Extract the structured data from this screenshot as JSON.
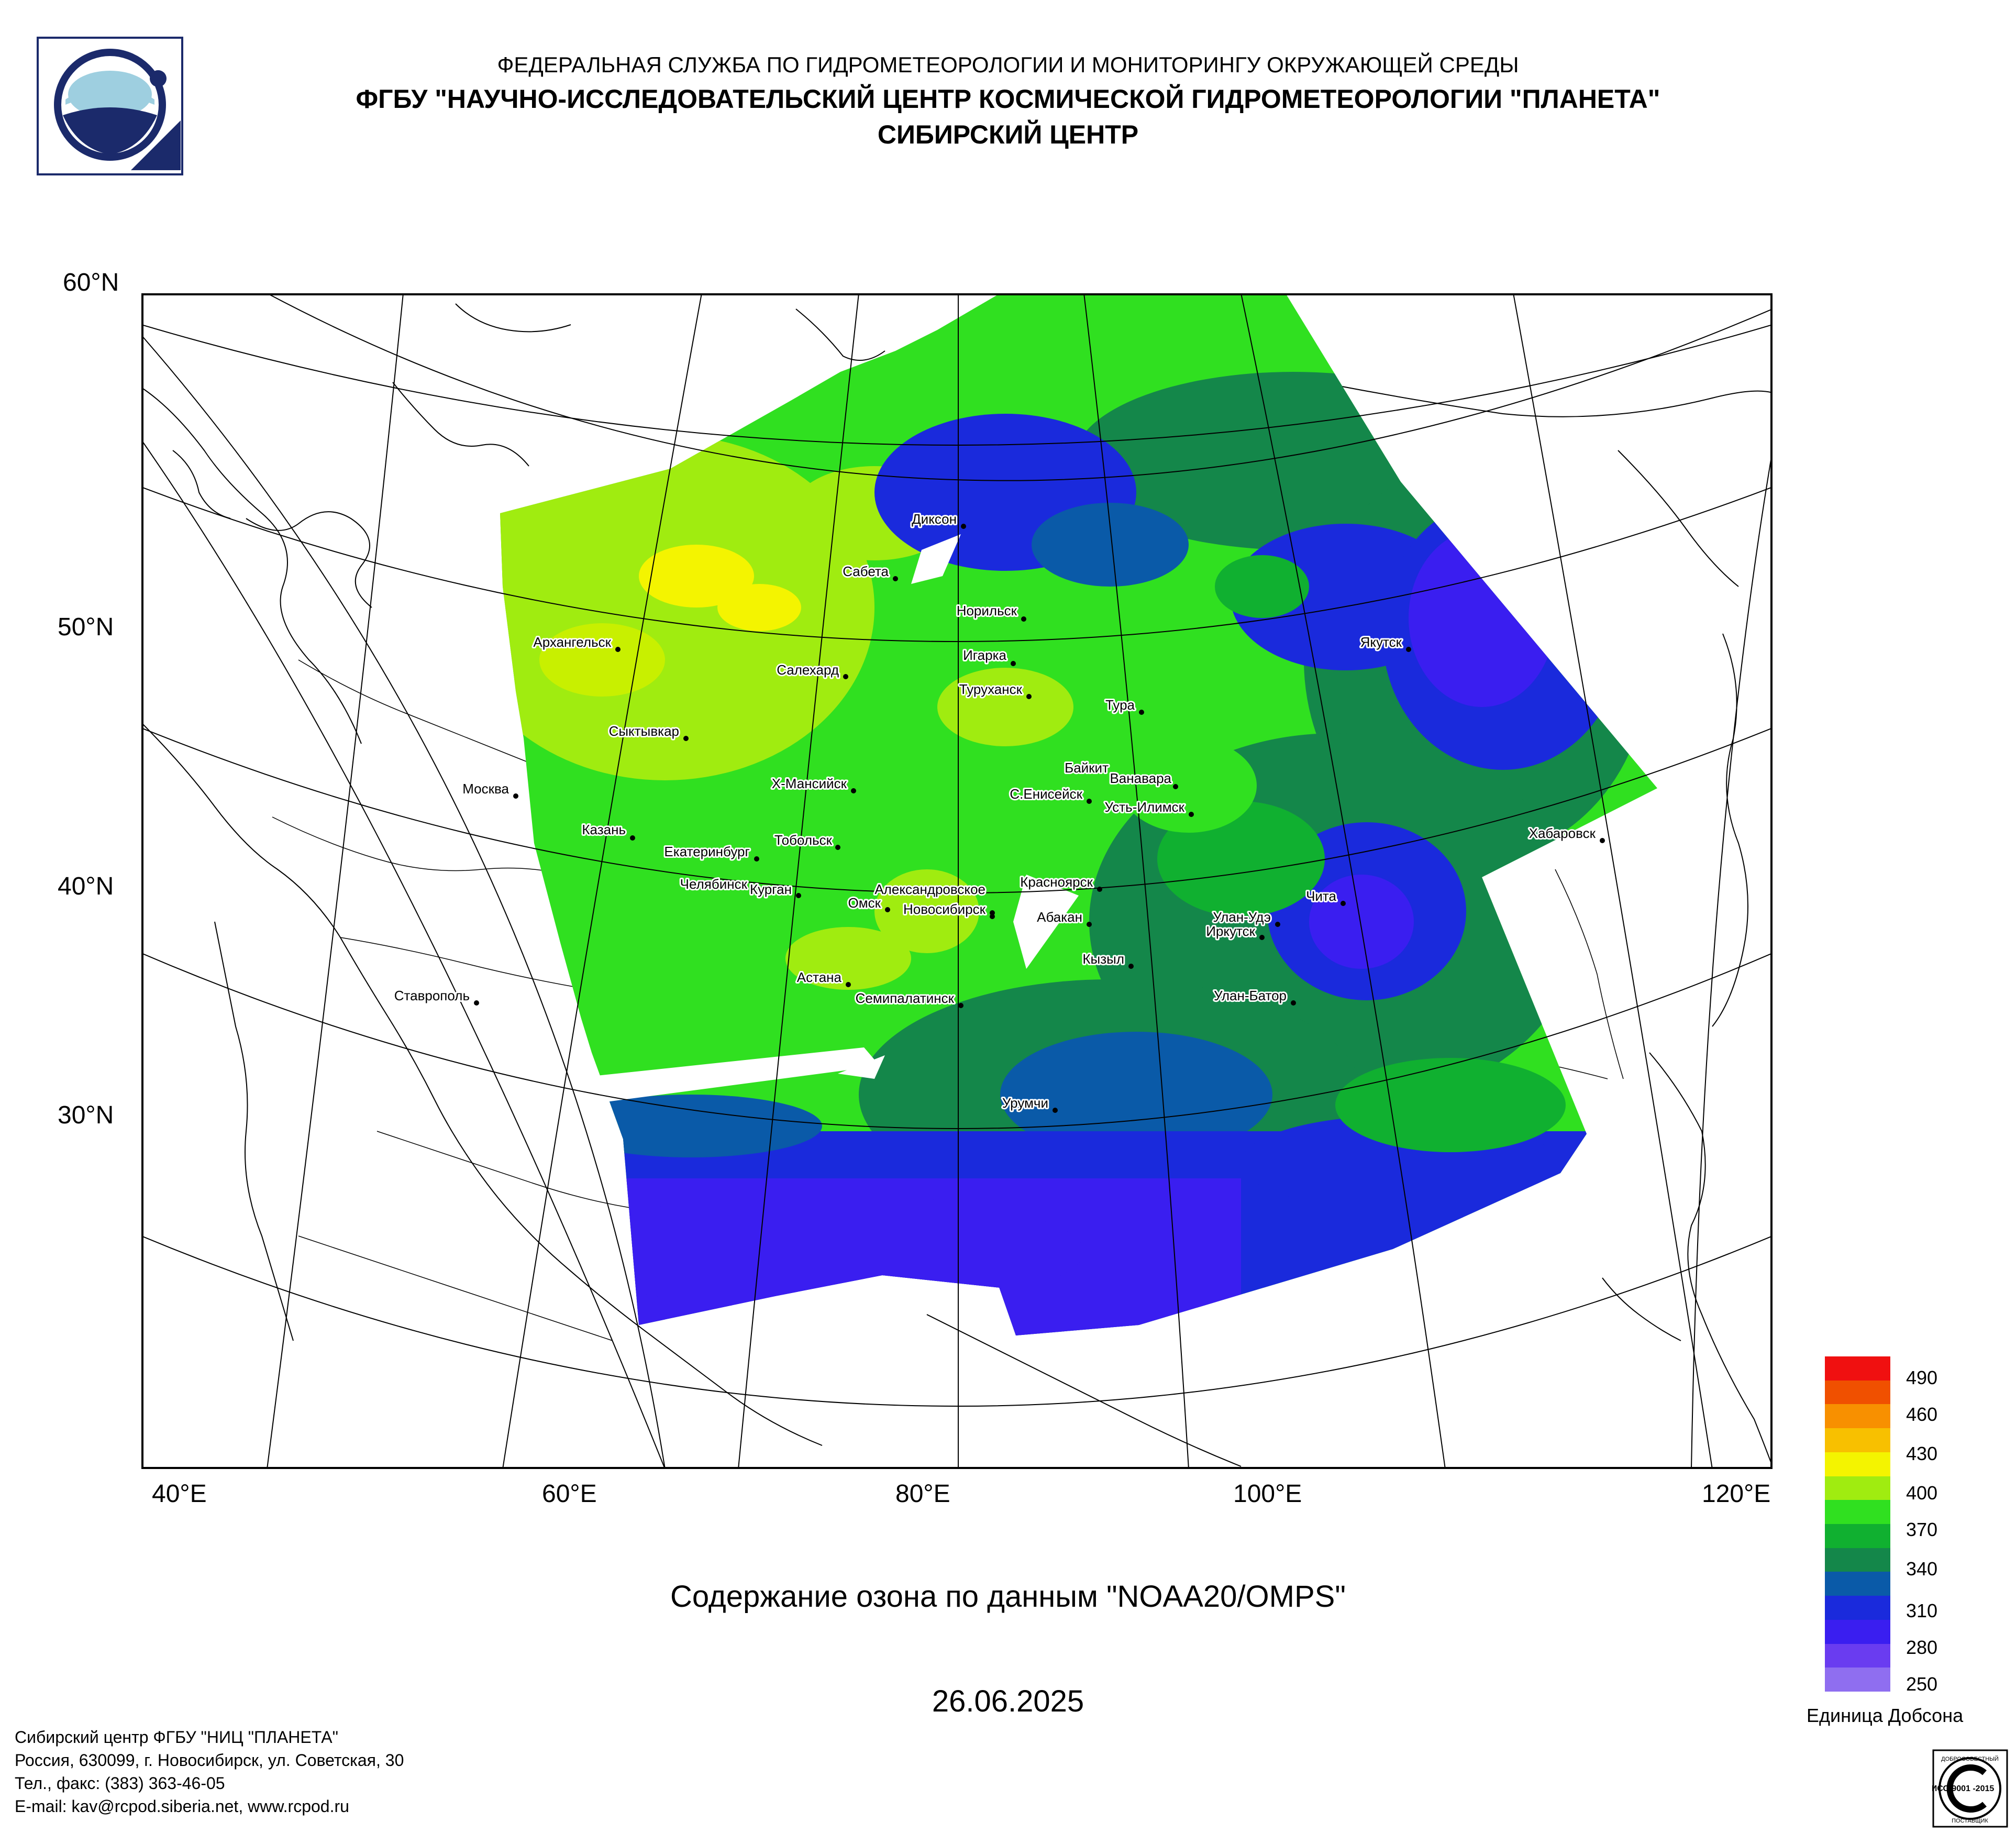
{
  "header": {
    "line1": "ФЕДЕРАЛЬНАЯ СЛУЖБА ПО ГИДРОМЕТЕОРОЛОГИИ И МОНИТОРИНГУ ОКРУЖАЮЩЕЙ СРЕДЫ",
    "line2": "ФГБУ \"НАУЧНО-ИССЛЕДОВАТЕЛЬСКИЙ ЦЕНТР КОСМИЧЕСКОЙ ГИДРОМЕТЕОРОЛОГИИ \"ПЛАНЕТА\"",
    "line3": "СИБИРСКИЙ ЦЕНТР"
  },
  "logo": {
    "icon": "planeta-logo-icon",
    "colors": [
      "#1b2a6b",
      "#9ecfe0"
    ]
  },
  "map": {
    "lat_labels": [
      "60°N",
      "50°N",
      "40°N",
      "30°N"
    ],
    "lon_labels": [
      "40°E",
      "60°E",
      "80°E",
      "100°E",
      "120°E"
    ],
    "cities": [
      {
        "name": "Диксон"
      },
      {
        "name": "Сабета"
      },
      {
        "name": "Норильск"
      },
      {
        "name": "Игарка"
      },
      {
        "name": "Архангельск"
      },
      {
        "name": "Салехард"
      },
      {
        "name": "Туруханск"
      },
      {
        "name": "Якутск"
      },
      {
        "name": "Тура"
      },
      {
        "name": "Сыктывкар"
      },
      {
        "name": "Байкит"
      },
      {
        "name": "Ванавара"
      },
      {
        "name": "Москва"
      },
      {
        "name": "Х-Мансийск"
      },
      {
        "name": "С.Енисейск"
      },
      {
        "name": "Усть-Илимск"
      },
      {
        "name": "Хабаровск"
      },
      {
        "name": "Казань"
      },
      {
        "name": "Тобольск"
      },
      {
        "name": "Екатеринбург"
      },
      {
        "name": "Красноярск"
      },
      {
        "name": "Чита"
      },
      {
        "name": "Челябинск"
      },
      {
        "name": "Александровское"
      },
      {
        "name": "Курган"
      },
      {
        "name": "Омск"
      },
      {
        "name": "Абакан"
      },
      {
        "name": "Улан-Удэ"
      },
      {
        "name": "Новосибирск"
      },
      {
        "name": "Иркутск"
      },
      {
        "name": "Кызыл"
      },
      {
        "name": "Астана"
      },
      {
        "name": "Ставрополь"
      },
      {
        "name": "Семипалатинск"
      },
      {
        "name": "Улан-Батор"
      },
      {
        "name": "Урумчи"
      }
    ]
  },
  "caption": "Содержание озона по данным \"NOAA20/OMPS\"",
  "date": "26.06.2025",
  "legend": {
    "ticks": [
      "490",
      "460",
      "430",
      "400",
      "370",
      "340",
      "310",
      "280",
      "250"
    ],
    "unit": "Единица Добсона",
    "colors": [
      "#8f6ef0",
      "#6a3cf0",
      "#3a1ef0",
      "#1a2adc",
      "#0a5aa8",
      "#14874a",
      "#10b030",
      "#30e020",
      "#a0ec10",
      "#f4f400",
      "#f8c000",
      "#f89000",
      "#f05000",
      "#f01010"
    ]
  },
  "footer": {
    "line1": "Сибирский центр ФГБУ \"НИЦ \"ПЛАНЕТА\"",
    "line2": "Россия, 630099, г. Новосибирск, ул. Советская, 30",
    "line3": "Тел., факс: (383) 363-46-05",
    "line4": "E-mail: kav@rcpod.siberia.net, www.rcpod.ru"
  },
  "iso_badge": {
    "top": "ДОБРОСОВЕСТНЫЙ",
    "middle": "ИСО 9001 -2015",
    "bottom": "ПОСТАВЩИК"
  }
}
